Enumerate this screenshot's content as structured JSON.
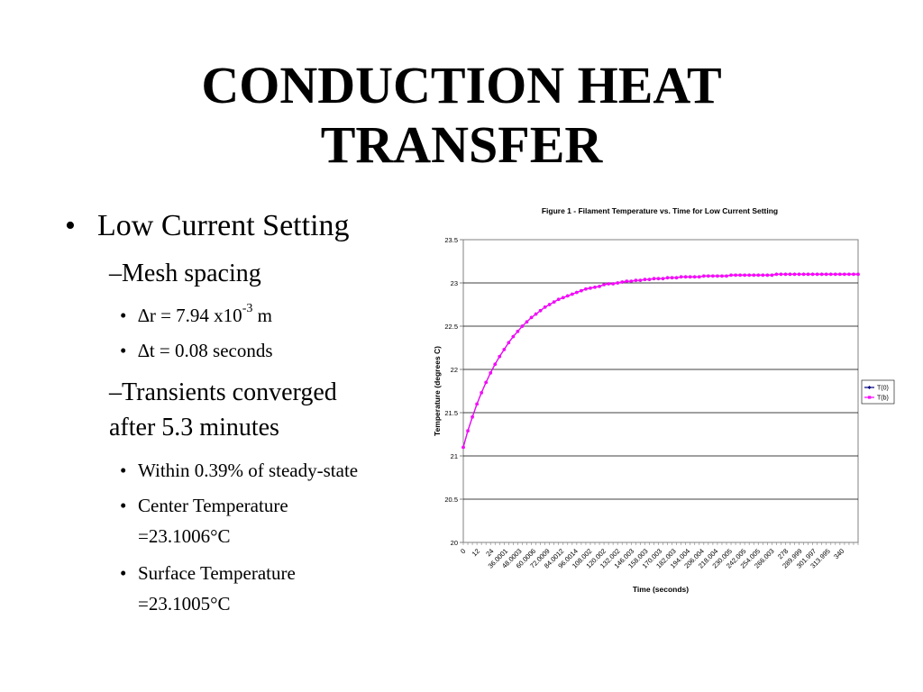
{
  "title": {
    "line1": "CONDUCTION HEAT",
    "line2": "TRANSFER"
  },
  "bullets": {
    "main": "Low Current Setting",
    "mesh": "–Mesh spacing",
    "dr_pre": "∆r = 7.94 x10",
    "dr_exp": "-3",
    "dr_post": " m",
    "dt": "∆t = 0.08 seconds",
    "transients_1": "–Transients converged",
    "transients_2": "after 5.3 minutes",
    "within": "Within 0.39% of steady-state",
    "center_1": "Center Temperature",
    "center_2": "=23.1006°C",
    "surface_1": "Surface Temperature",
    "surface_2": "=23.1005°C"
  },
  "chart_data": {
    "type": "line",
    "title": "Figure 1 - Filament Temperature vs. Time for Low Current Setting",
    "xlabel": "Time (seconds)",
    "ylabel": "Temperature (degrees C)",
    "ylim": [
      20,
      23.5
    ],
    "yticks": [
      "23.5",
      "23",
      "22.5",
      "22",
      "21.5",
      "21",
      "20.5",
      "20"
    ],
    "xticks": [
      "0",
      "12",
      "24",
      "36.0001",
      "48.0003",
      "60.0006",
      "72.0009",
      "84.0012",
      "96.0014",
      "108.002",
      "120.002",
      "132.002",
      "146.003",
      "158.003",
      "170.003",
      "182.003",
      "194.004",
      "206.004",
      "218.004",
      "230.005",
      "242.005",
      "254.005",
      "266.003",
      "278",
      "289.999",
      "301.997",
      "313.995",
      "340"
    ],
    "grid": true,
    "legend": "right",
    "x": [
      0,
      4,
      8,
      12,
      16,
      20,
      24,
      28,
      32,
      36,
      40,
      44,
      48,
      52,
      56,
      60,
      64,
      68,
      72,
      76,
      80,
      84,
      88,
      92,
      96,
      100,
      104,
      108,
      112,
      116,
      120,
      124,
      128,
      132,
      136,
      140,
      144,
      148,
      152,
      156,
      160,
      164,
      168,
      172,
      176,
      180,
      184,
      188,
      192,
      196,
      200,
      204,
      208,
      212,
      216,
      220,
      224,
      228,
      232,
      236,
      240,
      244,
      248,
      252,
      256,
      260,
      264,
      268,
      272,
      276,
      280,
      284,
      288,
      292,
      296,
      300,
      304,
      308,
      312,
      316,
      320,
      324,
      328,
      332,
      336,
      340,
      344,
      348
    ],
    "series": [
      {
        "name": "T(0)",
        "color": "#000080",
        "marker": "diamond",
        "values": [
          21.1,
          21.29,
          21.45,
          21.6,
          21.73,
          21.85,
          21.96,
          22.06,
          22.15,
          22.23,
          22.31,
          22.38,
          22.44,
          22.5,
          22.55,
          22.6,
          22.64,
          22.68,
          22.72,
          22.75,
          22.78,
          22.81,
          22.83,
          22.85,
          22.87,
          22.89,
          22.91,
          22.93,
          22.94,
          22.95,
          22.96,
          22.98,
          22.99,
          22.99,
          23.0,
          23.01,
          23.02,
          23.02,
          23.03,
          23.03,
          23.04,
          23.04,
          23.05,
          23.05,
          23.05,
          23.06,
          23.06,
          23.06,
          23.07,
          23.07,
          23.07,
          23.07,
          23.07,
          23.08,
          23.08,
          23.08,
          23.08,
          23.08,
          23.08,
          23.09,
          23.09,
          23.09,
          23.09,
          23.09,
          23.09,
          23.09,
          23.09,
          23.09,
          23.09,
          23.1,
          23.1,
          23.1,
          23.1,
          23.1,
          23.1,
          23.1,
          23.1,
          23.1,
          23.1,
          23.1,
          23.1,
          23.1,
          23.1,
          23.1,
          23.1,
          23.1,
          23.1,
          23.1
        ]
      },
      {
        "name": "T(b)",
        "color": "#ff00ff",
        "marker": "square",
        "values": [
          21.1,
          21.29,
          21.45,
          21.6,
          21.73,
          21.85,
          21.96,
          22.06,
          22.15,
          22.23,
          22.31,
          22.38,
          22.44,
          22.5,
          22.55,
          22.6,
          22.64,
          22.68,
          22.72,
          22.75,
          22.78,
          22.81,
          22.83,
          22.85,
          22.87,
          22.89,
          22.91,
          22.93,
          22.94,
          22.95,
          22.96,
          22.98,
          22.99,
          22.99,
          23.0,
          23.01,
          23.02,
          23.02,
          23.03,
          23.03,
          23.04,
          23.04,
          23.05,
          23.05,
          23.05,
          23.06,
          23.06,
          23.06,
          23.07,
          23.07,
          23.07,
          23.07,
          23.07,
          23.08,
          23.08,
          23.08,
          23.08,
          23.08,
          23.08,
          23.09,
          23.09,
          23.09,
          23.09,
          23.09,
          23.09,
          23.09,
          23.09,
          23.09,
          23.09,
          23.1,
          23.1,
          23.1,
          23.1,
          23.1,
          23.1,
          23.1,
          23.1,
          23.1,
          23.1,
          23.1,
          23.1,
          23.1,
          23.1,
          23.1,
          23.1,
          23.1,
          23.1,
          23.1
        ]
      }
    ]
  }
}
